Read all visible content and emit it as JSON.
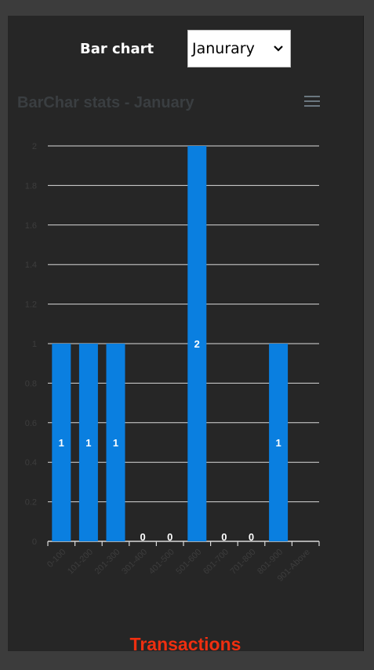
{
  "header": {
    "label": "Bar chart",
    "select_value": "Janurary"
  },
  "chart_data": {
    "type": "bar",
    "title": "BarChar stats - January",
    "categories": [
      "0-100",
      "101-200",
      "201-300",
      "301-400",
      "401-500",
      "501-600",
      "601-700",
      "701-800",
      "801-900",
      "901-Above"
    ],
    "values": [
      1,
      1,
      1,
      0,
      0,
      2,
      0,
      0,
      1,
      null
    ],
    "data_labels": [
      "1",
      "1",
      "1",
      "0",
      "0",
      "2",
      "0",
      "0",
      "1",
      ""
    ],
    "y_ticks": [
      "0",
      "0.2",
      "0.4",
      "0.6",
      "0.8",
      "1",
      "1.2",
      "1.4",
      "1.6",
      "1.8",
      "2"
    ],
    "ylim": [
      0,
      2
    ],
    "grid": true,
    "bar_color": "#0a7fe0",
    "xlabel": "",
    "ylabel": ""
  },
  "footer": {
    "title": "Transactions"
  },
  "icons": {
    "menu": "hamburger-menu-icon",
    "select": "chevron-down-icon"
  }
}
